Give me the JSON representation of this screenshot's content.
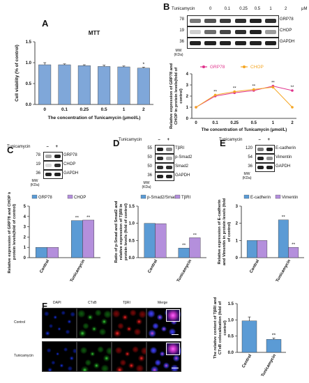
{
  "panels": {
    "A": {
      "letter": "A",
      "chart_data": {
        "type": "bar",
        "title": "MTT",
        "xlabel": "The concentration of Tunicamycin (μmol/L)",
        "ylabel": "Cell viability (% of control)",
        "categories": [
          "0",
          "0.1",
          "0.25",
          "0.5",
          "1",
          "2"
        ],
        "values": [
          0.95,
          0.95,
          0.93,
          0.91,
          0.9,
          0.87
        ],
        "errors": [
          0.05,
          0.02,
          0.02,
          0.03,
          0.02,
          0.02
        ],
        "annotations": [
          "",
          "",
          "",
          "",
          "",
          "*"
        ],
        "ylim": [
          0,
          1.5
        ],
        "yticks": [
          "0.0",
          "0.5",
          "1.0",
          "1.5"
        ],
        "bar_color": "#7fa7d9"
      }
    },
    "B": {
      "letter": "B",
      "treatment_label": "Tunicamycin",
      "concentrations": [
        "0",
        "0.1",
        "0.25",
        "0.5",
        "1",
        "2"
      ],
      "unit": "μM",
      "bands": [
        "GRP78",
        "CHOP",
        "GAPDH"
      ],
      "mw": [
        "78",
        "19",
        "36"
      ],
      "mw_unit": "MW\n(KDa)",
      "chart_data": {
        "type": "line",
        "xlabel": "The concentration of Tunicamycin (μmol/L)",
        "ylabel": "Relative expression of GRP78 and CHOP in protein levels(fold of control)",
        "categories": [
          "0",
          "0.1",
          "0.25",
          "0.5",
          "1",
          "2"
        ],
        "series": [
          {
            "name": "GRP78",
            "values": [
              1.0,
              2.0,
              2.3,
              2.5,
              2.9,
              2.5
            ],
            "color": "#e0338c"
          },
          {
            "name": "CHOP",
            "values": [
              1.0,
              2.1,
              2.4,
              2.6,
              2.8,
              1.0
            ],
            "color": "#f5a623"
          }
        ],
        "annotations": [
          "",
          "**",
          "**",
          "**",
          "**",
          "**"
        ],
        "ylim": [
          0,
          4
        ],
        "yticks": [
          "0",
          "1",
          "2",
          "3",
          "4"
        ]
      }
    },
    "C": {
      "letter": "C",
      "treatment_label": "Tunicamycin",
      "lanes": [
        "–",
        "+"
      ],
      "bands": [
        "GRP78",
        "CHOP",
        "GAPDH"
      ],
      "mw": [
        "78",
        "19",
        "36"
      ],
      "mw_unit": "MW\n(KDa)",
      "chart_data": {
        "type": "bar",
        "categories": [
          "Control",
          "Tunicamycin"
        ],
        "series": [
          {
            "name": "GRP78",
            "values": [
              1.0,
              3.6
            ],
            "color": "#5b9bd5"
          },
          {
            "name": "CHOP",
            "values": [
              1.0,
              3.65
            ],
            "color": "#b48fdc"
          }
        ],
        "annotations": [
          [
            "",
            ""
          ],
          [
            "**",
            "**"
          ]
        ],
        "ylabel": "Relative expression of GRP78 and CHOP in protein levels(fold of control)",
        "ylim": [
          0,
          5
        ],
        "yticks": [
          "0",
          "1",
          "2",
          "3",
          "4",
          "5"
        ]
      }
    },
    "D": {
      "letter": "D",
      "treatment_label": "Tunicamycin",
      "lanes": [
        "–",
        "+"
      ],
      "bands": [
        "TβRI",
        "p-Smad2",
        "Smad2",
        "GAPDH"
      ],
      "mw": [
        "55",
        "50",
        "50",
        "36"
      ],
      "mw_unit": "MW\n(KDa)",
      "chart_data": {
        "type": "bar",
        "categories": [
          "Control",
          "Tunicamycin"
        ],
        "series": [
          {
            "name": "p-Smad2/Smad2",
            "values": [
              1.0,
              0.28
            ],
            "color": "#5b9bd5"
          },
          {
            "name": "TβRI",
            "values": [
              0.99,
              0.58
            ],
            "color": "#b48fdc"
          }
        ],
        "annotations": [
          [
            "",
            ""
          ],
          [
            "**",
            "**"
          ]
        ],
        "ylabel": "Ratio of p-Smad and Smad2 and relative expression of TβRI in protein levels (fold of control)",
        "ylim": [
          0,
          1.5
        ],
        "yticks": [
          "0.0",
          "0.5",
          "1.0",
          "1.5"
        ]
      }
    },
    "E": {
      "letter": "E",
      "treatment_label": "Tunicamycin",
      "lanes": [
        "–",
        "+"
      ],
      "bands": [
        "E-cadherin",
        "Vimentin",
        "GAPDH"
      ],
      "mw": [
        "120",
        "54",
        "36"
      ],
      "mw_unit": "MW\n(KDa)",
      "chart_data": {
        "type": "bar",
        "categories": [
          "Control",
          "Tunicamycin"
        ],
        "series": [
          {
            "name": "E-cadherin",
            "values": [
              1.0,
              2.2
            ],
            "color": "#5b9bd5"
          },
          {
            "name": "Vimentin",
            "values": [
              1.0,
              0.6
            ],
            "color": "#b48fdc"
          }
        ],
        "annotations": [
          [
            "",
            ""
          ],
          [
            "**",
            "**"
          ]
        ],
        "ylabel": "Relative expression of E-cadherin and Vimentin in protein levels (fold of control)",
        "ylim": [
          0,
          3
        ],
        "yticks": [
          "0",
          "1",
          "2",
          "3"
        ]
      }
    },
    "F": {
      "letter": "F",
      "columns": [
        "DAPI",
        "CTxB",
        "TβRI",
        "Merge"
      ],
      "rows": [
        "Control",
        "Tunicamycin"
      ],
      "chart_data": {
        "type": "bar",
        "categories": [
          "Control",
          "Tunicamycin"
        ],
        "values": [
          0.97,
          0.4
        ],
        "errors": [
          0.12,
          0.04
        ],
        "annotations": [
          "",
          "**"
        ],
        "ylabel": "The relative content of TβRI and CTxB colocalization (fold of control)",
        "ylim": [
          0,
          1.5
        ],
        "yticks": [
          "0.0",
          "0.5",
          "1.0",
          "1.5"
        ],
        "bar_color": "#5b9bd5"
      }
    }
  }
}
